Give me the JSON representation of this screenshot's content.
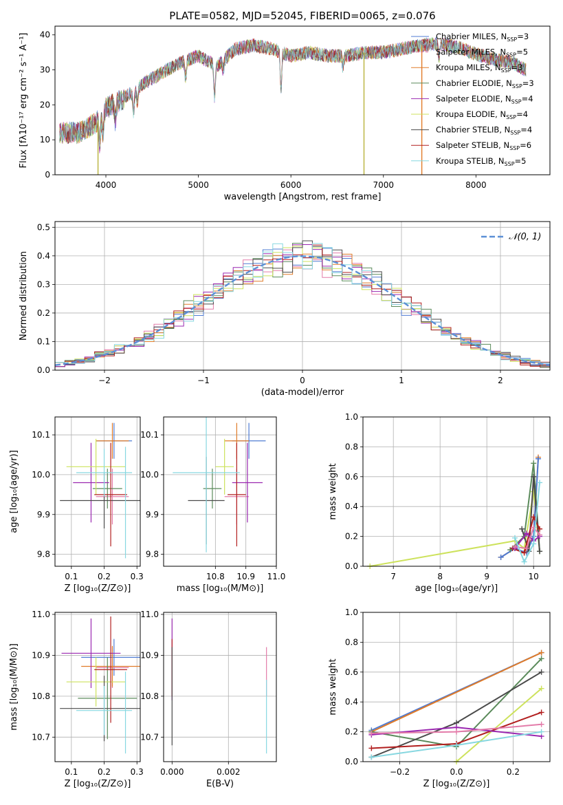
{
  "chart_data": [
    {
      "id": "spectrum",
      "type": "line",
      "title": "PLATE=0582, MJD=52045, FIBERID=0065, z=0.076",
      "xlabel": "wavelength [Angstrom, rest frame]",
      "ylabel": "Flux [fλ10⁻¹⁷ erg cm⁻² s⁻¹ A⁻¹]",
      "xlim": [
        3450,
        8800
      ],
      "ylim": [
        0,
        42.5
      ],
      "xticks": [
        4000,
        5000,
        6000,
        7000,
        8000
      ],
      "yticks": [
        0,
        10,
        20,
        30,
        40
      ],
      "grid": false,
      "legend_position": "top-right",
      "continuum_x": [
        3500,
        3700,
        3900,
        4000,
        4200,
        4400,
        4600,
        4800,
        5000,
        5200,
        5400,
        5600,
        5800,
        6000,
        6200,
        6400,
        6600,
        6800,
        7000,
        7200,
        7400,
        7600,
        7800,
        8000,
        8200,
        8400,
        8540
      ],
      "continuum_y": [
        12,
        12,
        15,
        19,
        22,
        26,
        29,
        32,
        34,
        31,
        36,
        37,
        36,
        34,
        35,
        34,
        34,
        35,
        35,
        36,
        37,
        37.5,
        36.5,
        34.5,
        33,
        32,
        30
      ],
      "absorptions": [
        {
          "x": 3934,
          "depth": 8
        },
        {
          "x": 3969,
          "depth": 6
        },
        {
          "x": 4102,
          "depth": 5
        },
        {
          "x": 4300,
          "depth": 6
        },
        {
          "x": 4340,
          "depth": 4
        },
        {
          "x": 4861,
          "depth": 5
        },
        {
          "x": 5175,
          "depth": 9
        },
        {
          "x": 5270,
          "depth": 3
        },
        {
          "x": 5893,
          "depth": 10
        },
        {
          "x": 6563,
          "depth": 3
        },
        {
          "x": 7600,
          "depth": 4
        }
      ],
      "series": [
        {
          "name": "Chabrier MILES, N<sub>SSP</sub>=3",
          "color": "#4f7bd3",
          "dash": "none",
          "noise_seed": 1
        },
        {
          "name": "Salpeter MILES, N<sub>SSP</sub>=5",
          "color": "#e37ba9",
          "dash": "4,3",
          "noise_seed": 2
        },
        {
          "name": "Kroupa MILES, N<sub>SSP</sub>=3",
          "color": "#e07b28",
          "dash": "none",
          "noise_seed": 3
        },
        {
          "name": "Chabrier ELODIE, N<sub>SSP</sub>=3",
          "color": "#5a8a5a",
          "dash": "none",
          "noise_seed": 4
        },
        {
          "name": "Salpeter ELODIE, N<sub>SSP</sub>=4",
          "color": "#9a27b0",
          "dash": "none",
          "noise_seed": 5
        },
        {
          "name": "Kroupa ELODIE, N<sub>SSP</sub>=4",
          "color": "#cde25c",
          "dash": "none",
          "noise_seed": 6
        },
        {
          "name": "Chabrier STELIB, N<sub>SSP</sub>=4",
          "color": "#4a4a4a",
          "dash": "none",
          "noise_seed": 7
        },
        {
          "name": "Salpeter STELIB, N<sub>SSP</sub>=6",
          "color": "#b21f1f",
          "dash": "none",
          "noise_seed": 8
        },
        {
          "name": "Kroupa STELIB, N<sub>SSP</sub>=5",
          "color": "#86d7e0",
          "dash": "none",
          "noise_seed": 9
        }
      ],
      "drop_lines": [
        {
          "x": 3915,
          "color": "#b8b23a",
          "to_y": 0
        },
        {
          "x": 6790,
          "color": "#b8b23a",
          "to_y": 0
        },
        {
          "x": 7415,
          "color": "#e07b28",
          "to_y": 0
        }
      ]
    },
    {
      "id": "residuals",
      "type": "step",
      "xlabel": "(data-model)/error",
      "ylabel": "Normed distribution",
      "xlim": [
        -2.5,
        2.5
      ],
      "ylim": [
        0,
        0.52
      ],
      "xticks": [
        -2,
        -1,
        0,
        1,
        2
      ],
      "yticks": [
        0.0,
        0.1,
        0.2,
        0.3,
        0.4,
        0.5
      ],
      "grid": true,
      "legend_position": "top-right",
      "gaussian_label": "𝒩(0, 1)",
      "gaussian_color": "#5b8fd6",
      "bin_width": 0.1
    },
    {
      "id": "age_vs_Z",
      "type": "errorbar",
      "xlabel": "Z [log₁₀(Z/Z⊙)]",
      "ylabel": "age  [log₁₀(age/yr)]",
      "xlim": [
        0.05,
        0.31
      ],
      "ylim": [
        9.77,
        10.145
      ],
      "xticks": [
        0.1,
        0.2,
        0.3
      ],
      "yticks": [
        9.8,
        9.9,
        10.0,
        10.1
      ],
      "grid": true,
      "points": [
        {
          "x": 0.23,
          "y": 10.085,
          "xerr": 0.055,
          "yerr": 0.045,
          "color": "#4f7bd3"
        },
        {
          "x": 0.225,
          "y": 9.945,
          "xerr": 0.05,
          "yerr": 0.07,
          "color": "#e37ba9"
        },
        {
          "x": 0.225,
          "y": 10.085,
          "xerr": 0.05,
          "yerr": 0.045,
          "color": "#e07b28"
        },
        {
          "x": 0.21,
          "y": 9.965,
          "xerr": 0.045,
          "yerr": 0.05,
          "color": "#5a8a5a"
        },
        {
          "x": 0.16,
          "y": 9.98,
          "xerr": 0.055,
          "yerr": 0.1,
          "color": "#9a27b0"
        },
        {
          "x": 0.175,
          "y": 10.02,
          "xerr": 0.09,
          "yerr": 0.07,
          "color": "#cde25c"
        },
        {
          "x": 0.2,
          "y": 9.935,
          "xerr": 0.135,
          "yerr": 0.07,
          "color": "#4a4a4a"
        },
        {
          "x": 0.22,
          "y": 9.95,
          "xerr": 0.05,
          "yerr": 0.13,
          "color": "#b21f1f"
        },
        {
          "x": 0.2,
          "y": 10.005,
          "xerr": 0.085,
          "yerr": 0.06,
          "color": "#86d7e0"
        },
        {
          "x": 0.265,
          "y": 9.93,
          "xerr": 0.0,
          "yerr": 0.14,
          "color": "#86d7e0"
        }
      ]
    },
    {
      "id": "age_vs_mass",
      "type": "errorbar",
      "xlabel": "mass [log₁₀(M/M⊙)]",
      "ylabel": "",
      "xlim": [
        10.63,
        11.0
      ],
      "ylim": [
        9.77,
        10.145
      ],
      "xticks": [
        10.8,
        10.9,
        11.0
      ],
      "yticks": [
        9.8,
        9.9,
        10.0,
        10.1
      ],
      "grid": true,
      "points": [
        {
          "x": 10.91,
          "y": 10.085,
          "xerr": 0.055,
          "yerr": 0.045,
          "color": "#4f7bd3"
        },
        {
          "x": 10.87,
          "y": 9.945,
          "xerr": 0.04,
          "yerr": 0.07,
          "color": "#e37ba9"
        },
        {
          "x": 10.87,
          "y": 10.085,
          "xerr": 0.04,
          "yerr": 0.045,
          "color": "#e07b28"
        },
        {
          "x": 10.79,
          "y": 9.965,
          "xerr": 0.03,
          "yerr": 0.05,
          "color": "#5a8a5a"
        },
        {
          "x": 10.905,
          "y": 9.98,
          "xerr": 0.05,
          "yerr": 0.1,
          "color": "#9a27b0"
        },
        {
          "x": 10.83,
          "y": 10.02,
          "xerr": 0.03,
          "yerr": 0.07,
          "color": "#cde25c"
        },
        {
          "x": 10.77,
          "y": 9.935,
          "xerr": 0.06,
          "yerr": 0.11,
          "color": "#4a4a4a"
        },
        {
          "x": 10.87,
          "y": 9.95,
          "xerr": 0.03,
          "yerr": 0.13,
          "color": "#b21f1f"
        },
        {
          "x": 10.77,
          "y": 10.005,
          "xerr": 0.11,
          "yerr": 0.2,
          "color": "#86d7e0"
        }
      ]
    },
    {
      "id": "weight_vs_age",
      "type": "line",
      "xlabel": "age  [log₁₀(age/yr)]",
      "ylabel": "mass weight",
      "xlim": [
        6.35,
        10.35
      ],
      "ylim": [
        0.0,
        1.0
      ],
      "xticks": [
        7,
        8,
        9,
        10
      ],
      "yticks": [
        0.0,
        0.2,
        0.4,
        0.6,
        0.8,
        1.0
      ],
      "grid": true,
      "series": [
        {
          "color": "#cde25c",
          "x": [
            6.5,
            9.6,
            9.8,
            10.0,
            10.13
          ],
          "y": [
            0.0,
            0.17,
            0.12,
            0.5,
            0.1
          ]
        },
        {
          "color": "#e07b28",
          "x": [
            9.3,
            9.6,
            9.8,
            10.0,
            10.1
          ],
          "y": [
            0.06,
            0.12,
            0.09,
            0.2,
            0.73
          ]
        },
        {
          "color": "#4f7bd3",
          "x": [
            9.3,
            9.6,
            9.85,
            10.0,
            10.1
          ],
          "y": [
            0.06,
            0.12,
            0.09,
            0.2,
            0.72
          ]
        },
        {
          "color": "#5a8a5a",
          "x": [
            9.5,
            9.8,
            10.0,
            10.13
          ],
          "y": [
            0.11,
            0.2,
            0.69,
            0.1
          ]
        },
        {
          "color": "#4a4a4a",
          "x": [
            9.75,
            9.9,
            10.0,
            10.13
          ],
          "y": [
            0.25,
            0.1,
            0.6,
            0.1
          ]
        },
        {
          "color": "#b21f1f",
          "x": [
            9.55,
            9.8,
            10.0,
            10.13
          ],
          "y": [
            0.12,
            0.09,
            0.33,
            0.25
          ]
        },
        {
          "color": "#9a27b0",
          "x": [
            9.6,
            9.85,
            10.0,
            10.13
          ],
          "y": [
            0.12,
            0.22,
            0.17,
            0.2
          ]
        },
        {
          "color": "#e37ba9",
          "x": [
            9.6,
            9.85,
            10.0,
            10.13
          ],
          "y": [
            0.13,
            0.12,
            0.26,
            0.21
          ]
        },
        {
          "color": "#86d7e0",
          "x": [
            9.6,
            9.8,
            10.0,
            10.13
          ],
          "y": [
            0.19,
            0.03,
            0.15,
            0.56
          ]
        }
      ]
    },
    {
      "id": "mass_vs_Z",
      "type": "errorbar",
      "xlabel": "Z [log₁₀(Z/Z⊙)]",
      "ylabel": "mass [log₁₀(M/M⊙)]",
      "xlim": [
        0.05,
        0.31
      ],
      "ylim": [
        10.64,
        11.005
      ],
      "xticks": [
        0.1,
        0.2,
        0.3
      ],
      "yticks": [
        10.7,
        10.8,
        10.9,
        11.0
      ],
      "grid": true,
      "points": [
        {
          "x": 0.23,
          "y": 10.895,
          "xerr": 0.1,
          "yerr": 0.045,
          "color": "#4f7bd3"
        },
        {
          "x": 0.225,
          "y": 10.87,
          "xerr": 0.05,
          "yerr": 0.05,
          "color": "#e37ba9"
        },
        {
          "x": 0.225,
          "y": 10.873,
          "xerr": 0.095,
          "yerr": 0.05,
          "color": "#e07b28"
        },
        {
          "x": 0.21,
          "y": 10.795,
          "xerr": 0.09,
          "yerr": 0.1,
          "color": "#5a8a5a"
        },
        {
          "x": 0.16,
          "y": 10.905,
          "xerr": 0.09,
          "yerr": 0.085,
          "color": "#9a27b0"
        },
        {
          "x": 0.175,
          "y": 10.835,
          "xerr": 0.09,
          "yerr": 0.06,
          "color": "#cde25c"
        },
        {
          "x": 0.2,
          "y": 10.77,
          "xerr": 0.135,
          "yerr": 0.08,
          "color": "#4a4a4a"
        },
        {
          "x": 0.22,
          "y": 10.865,
          "xerr": 0.05,
          "yerr": 0.13,
          "color": "#b21f1f"
        },
        {
          "x": 0.2,
          "y": 10.765,
          "xerr": 0.085,
          "yerr": 0.06,
          "color": "#86d7e0"
        },
        {
          "x": 0.265,
          "y": 10.76,
          "xerr": 0.0,
          "yerr": 0.1,
          "color": "#86d7e0"
        }
      ]
    },
    {
      "id": "mass_vs_ebv",
      "type": "errorbar",
      "xlabel": "E(B-V)",
      "ylabel": "",
      "xlim": [
        -0.0003,
        0.0037
      ],
      "ylim": [
        10.64,
        11.005
      ],
      "xticks": [
        0.0,
        0.002
      ],
      "xticklabels": [
        "0.000",
        "0.002"
      ],
      "yticks": [
        10.7,
        10.8,
        10.9,
        11.0
      ],
      "grid": true,
      "points": [
        {
          "x": 0.0,
          "y": 10.89,
          "xerr": 0,
          "yerr": 0.1,
          "color": "#9a27b0"
        },
        {
          "x": 0.0,
          "y": 10.87,
          "xerr": 0,
          "yerr": 0.07,
          "color": "#b21f1f"
        },
        {
          "x": 0.0,
          "y": 10.8,
          "xerr": 0,
          "yerr": 0.12,
          "color": "#4a4a4a"
        },
        {
          "x": 0.00335,
          "y": 10.86,
          "xerr": 0,
          "yerr": 0.06,
          "color": "#e37ba9"
        },
        {
          "x": 0.00335,
          "y": 10.75,
          "xerr": 0,
          "yerr": 0.09,
          "color": "#86d7e0"
        }
      ]
    },
    {
      "id": "weight_vs_Z",
      "type": "line",
      "xlabel": "Z [log₁₀(Z/Z⊙)]",
      "ylabel": "mass weight",
      "xlim": [
        -0.33,
        0.33
      ],
      "ylim": [
        0.0,
        1.0
      ],
      "xticks": [
        -0.2,
        0.0,
        0.2
      ],
      "xticklabels": [
        "−0.2",
        "0.0",
        "0.2"
      ],
      "yticks": [
        0.0,
        0.2,
        0.4,
        0.6,
        0.8,
        1.0
      ],
      "grid": true,
      "series": [
        {
          "color": "#4f7bd3",
          "x": [
            -0.3,
            0.3
          ],
          "y": [
            0.21,
            0.73
          ]
        },
        {
          "color": "#e07b28",
          "x": [
            -0.3,
            0.3
          ],
          "y": [
            0.2,
            0.73
          ]
        },
        {
          "color": "#5a8a5a",
          "x": [
            -0.3,
            0.0,
            0.3
          ],
          "y": [
            0.2,
            0.1,
            0.69
          ]
        },
        {
          "color": "#4a4a4a",
          "x": [
            -0.3,
            0.0,
            0.3
          ],
          "y": [
            0.03,
            0.26,
            0.6
          ]
        },
        {
          "color": "#cde25c",
          "x": [
            0.0,
            0.3
          ],
          "y": [
            0.0,
            0.49
          ]
        },
        {
          "color": "#b21f1f",
          "x": [
            -0.3,
            0.0,
            0.3
          ],
          "y": [
            0.09,
            0.12,
            0.33
          ]
        },
        {
          "color": "#9a27b0",
          "x": [
            -0.3,
            0.0,
            0.3
          ],
          "y": [
            0.18,
            0.23,
            0.17
          ]
        },
        {
          "color": "#e37ba9",
          "x": [
            -0.3,
            0.0,
            0.3
          ],
          "y": [
            0.19,
            0.2,
            0.25
          ]
        },
        {
          "color": "#86d7e0",
          "x": [
            -0.3,
            0.0,
            0.3
          ],
          "y": [
            0.03,
            0.11,
            0.2
          ]
        }
      ]
    }
  ]
}
